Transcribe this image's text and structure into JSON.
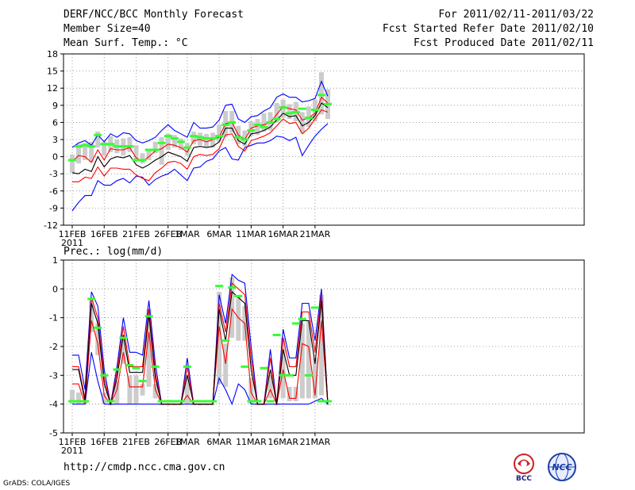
{
  "header": {
    "title": "DERF/NCC/BCC Monthly Forecast",
    "member_size": "Member Size=40",
    "variable": "Mean Surf. Temp.: °C",
    "period": "For 2011/02/11-2011/03/22",
    "started": "Fcst Started Refer Date 2011/02/10",
    "produced": "Fcst Produced Date 2011/02/11"
  },
  "panel2_label": "Prec.: log(mm/d)",
  "footer": {
    "url": "http://cmdp.ncc.cma.gov.cn",
    "credit": "GrADS: COLA/IGES",
    "logo1_text": "BCC",
    "logo2_text": "NCC"
  },
  "colors": {
    "box": "#cccccc",
    "obs": "#33ff33",
    "max": "#0000ff",
    "min": "#0000ff",
    "upper": "#ff0000",
    "lower": "#ff0000",
    "mean": "#000000",
    "grid": "#888888"
  },
  "chart_data": [
    {
      "type": "line",
      "title": "Mean Surf. Temp.: °C",
      "x_ticks": [
        "11FEB",
        "16FEB",
        "21FEB",
        "26FEB",
        "1MAR",
        "6MAR",
        "11MAR",
        "16MAR",
        "21MAR"
      ],
      "x_tick_days": [
        0,
        5,
        10,
        15,
        18,
        23,
        28,
        33,
        38
      ],
      "x_sub_label": "2011",
      "yticks": [
        "18",
        "15",
        "12",
        "9",
        "6",
        "3",
        "0",
        "-3",
        "-6",
        "-9",
        "-12"
      ],
      "ylim": [
        -12,
        18
      ],
      "grid": true,
      "series": [
        {
          "name": "max",
          "values": [
            -9.5,
            -8,
            -6.8,
            -6.8,
            -4.2,
            -5,
            -5,
            -4.2,
            -3.8,
            -4.6,
            -3.4,
            -3.6,
            -5,
            -4,
            -3.4,
            -3,
            -2.2,
            -3.2,
            -4.2,
            -2,
            -1.8,
            -0.8,
            -0.4,
            1,
            1.6,
            -0.4,
            -0.6,
            1.6,
            2,
            2.4,
            2.4,
            2.8,
            3.6,
            3.4,
            2.8,
            3.4,
            0.2,
            2,
            3.6,
            4.8,
            5.8
          ]
        },
        {
          "name": "min",
          "values": [
            1.6,
            2.4,
            2.8,
            2,
            3.8,
            2.6,
            4,
            3.4,
            4.2,
            4,
            2.8,
            2.4,
            2.8,
            3.4,
            4.6,
            5.6,
            4.6,
            4,
            3.4,
            6,
            5,
            5,
            5.2,
            6.4,
            9,
            9.2,
            6.6,
            6,
            7,
            7.2,
            8,
            8.6,
            10.4,
            11,
            10.4,
            10.4,
            9.6,
            9.8,
            10.2,
            13.2,
            10.6
          ]
        },
        {
          "name": "upper",
          "values": [
            -0.8,
            0.2,
            0,
            -1,
            1.2,
            -0.6,
            1.4,
            1.2,
            1.2,
            1.6,
            -0.2,
            -0.8,
            0,
            1,
            1.4,
            2.2,
            2,
            1.6,
            0.8,
            2.8,
            3,
            2.6,
            3,
            3.4,
            5.8,
            6,
            3.8,
            3,
            5,
            5.4,
            5.6,
            6,
            7.4,
            8.8,
            8.4,
            8.2,
            6.4,
            6.8,
            7.6,
            10.4,
            9.4
          ]
        },
        {
          "name": "lower",
          "values": [
            -4.4,
            -4.4,
            -3.6,
            -3.8,
            -1.8,
            -3.4,
            -2,
            -2,
            -2.2,
            -2.2,
            -3.2,
            -3.8,
            -4.2,
            -2.8,
            -2,
            -1,
            -0.8,
            -1.2,
            -2.2,
            0,
            0.4,
            0.2,
            0.4,
            1.4,
            3.8,
            4,
            1.8,
            1,
            2.8,
            3.2,
            3.6,
            4.2,
            5.4,
            6.6,
            5.8,
            6,
            4,
            5,
            6.6,
            8.2,
            7.8
          ]
        },
        {
          "name": "mean",
          "values": [
            -2.8,
            -3,
            -2.2,
            -2.6,
            0,
            -1.8,
            -0.4,
            0,
            -0.2,
            0.2,
            -1.4,
            -2,
            -1.4,
            -0.6,
            0,
            0.8,
            0.4,
            0,
            -0.8,
            1.6,
            1.8,
            1.6,
            1.8,
            2.6,
            5,
            5,
            2.8,
            2.2,
            4,
            4.2,
            4.6,
            5.2,
            6.4,
            7.6,
            7,
            7.2,
            5.4,
            6,
            7.2,
            9.4,
            8.6
          ]
        },
        {
          "name": "observed",
          "values": [
            -0.6,
            1.8,
            2,
            1.8,
            3.8,
            2.2,
            2.2,
            1.8,
            1.8,
            1.8,
            -0.6,
            -0.6,
            1.2,
            1.2,
            2.4,
            3.6,
            3.2,
            2.6,
            1.6,
            3.6,
            3.4,
            3.2,
            3.2,
            3.6,
            5.6,
            6,
            3.4,
            3,
            4.6,
            5.6,
            5.2,
            6,
            6.6,
            8.6,
            7.6,
            7.8,
            8.4,
            6.8,
            8.2,
            10.8,
            9.2
          ]
        }
      ],
      "boxes": {
        "high": [
          0.4,
          2.2,
          2.4,
          2.6,
          4.4,
          2.6,
          3.6,
          3,
          3.2,
          3.4,
          2,
          0.6,
          1.2,
          2.6,
          3.4,
          4,
          3.8,
          3.2,
          2.4,
          4.4,
          4.2,
          4,
          4.2,
          5.6,
          8,
          8,
          5.4,
          4.6,
          6.2,
          6.6,
          7.6,
          7.8,
          9.4,
          10,
          9.2,
          9.6,
          7.8,
          8.8,
          10,
          14.8,
          11.8
        ],
        "low": [
          -2.8,
          -1.2,
          -0.6,
          -1,
          1.6,
          0.2,
          0.8,
          0.6,
          0.2,
          0.8,
          -0.4,
          -1.2,
          -0.6,
          0.6,
          -1.4,
          1.2,
          1.6,
          1.2,
          0.2,
          2.2,
          2,
          1.6,
          1.6,
          2.6,
          3.4,
          4.2,
          2.2,
          1.8,
          3.6,
          3.8,
          4.4,
          4.6,
          6,
          6.8,
          6.6,
          6.2,
          4.2,
          5.2,
          6.2,
          7.4,
          6.6
        ]
      }
    },
    {
      "type": "line",
      "title": "Prec.: log(mm/d)",
      "x_ticks": [
        "11FEB",
        "16FEB",
        "21FEB",
        "26FEB",
        "1MAR",
        "6MAR",
        "11MAR",
        "16MAR",
        "21MAR"
      ],
      "x_tick_days": [
        0,
        5,
        10,
        15,
        18,
        23,
        28,
        33,
        38
      ],
      "x_sub_label": "2011",
      "yticks": [
        "1",
        "0",
        "-1",
        "-2",
        "-3",
        "-4",
        "-5"
      ],
      "ylim": [
        -5,
        1
      ],
      "grid": true,
      "series": [
        {
          "name": "max",
          "values": [
            -2.3,
            -2.3,
            -3.5,
            -0.1,
            -0.6,
            -2.8,
            -4,
            -2.7,
            -1,
            -2.2,
            -2.2,
            -2.3,
            -0.4,
            -2.6,
            -4,
            -4,
            -4,
            -4,
            -2.4,
            -4,
            -4,
            -4,
            -4,
            -0.2,
            -1.2,
            0.5,
            0.3,
            0.2,
            -2,
            -4,
            -4,
            -2.1,
            -4,
            -1.4,
            -2.4,
            -2.4,
            -0.5,
            -0.5,
            -1.8,
            0,
            -4
          ]
        },
        {
          "name": "min",
          "values": [
            -4,
            -4,
            -4,
            -2.2,
            -3.2,
            -4,
            -4,
            -4,
            -4,
            -4,
            -4,
            -4,
            -4,
            -4,
            -4,
            -4,
            -4,
            -4,
            -4,
            -4,
            -4,
            -4,
            -4,
            -3.1,
            -3.5,
            -4,
            -3.3,
            -3.5,
            -4,
            -4,
            -4,
            -4,
            -4,
            -4,
            -4,
            -4,
            -4,
            -4,
            -3.9,
            -3.8,
            -4
          ]
        },
        {
          "name": "upper",
          "values": [
            -2.7,
            -2.7,
            -3.8,
            -0.3,
            -1,
            -3.1,
            -4,
            -2.9,
            -1.3,
            -2.7,
            -2.7,
            -2.7,
            -0.7,
            -2.9,
            -4,
            -4,
            -4,
            -4,
            -2.7,
            -4,
            -4,
            -4,
            -4,
            -0.5,
            -1.5,
            0.2,
            0,
            -0.2,
            -2.4,
            -4,
            -4,
            -2.4,
            -4,
            -1.7,
            -2.7,
            -2.7,
            -0.8,
            -0.8,
            -2.2,
            -0.2,
            -4
          ]
        },
        {
          "name": "lower",
          "values": [
            -3.3,
            -3.3,
            -4,
            -1.1,
            -1.9,
            -3.7,
            -4,
            -3.5,
            -2.2,
            -3.4,
            -3.4,
            -3.4,
            -1.5,
            -3.5,
            -4,
            -4,
            -4,
            -4,
            -3.7,
            -4,
            -4,
            -4,
            -4,
            -1.3,
            -2.6,
            -0.7,
            -1,
            -1.2,
            -3.6,
            -4,
            -4,
            -3.5,
            -4,
            -2.8,
            -3.8,
            -3.8,
            -1.9,
            -2,
            -3.7,
            -1.1,
            -4
          ]
        },
        {
          "name": "mean",
          "values": [
            -2.8,
            -2.8,
            -3.9,
            -0.5,
            -1.2,
            -3.3,
            -4,
            -3.1,
            -1.6,
            -2.9,
            -2.9,
            -2.9,
            -0.9,
            -3.1,
            -4,
            -4,
            -4,
            -4,
            -3,
            -4,
            -4,
            -4,
            -4,
            -0.7,
            -1.8,
            -0.1,
            -0.3,
            -0.5,
            -2.8,
            -4,
            -4,
            -2.8,
            -4,
            -2.1,
            -3,
            -3,
            -1.1,
            -1.1,
            -2.6,
            -0.4,
            -4
          ]
        },
        {
          "name": "observed",
          "values": [
            -3.9,
            -3.9,
            -3.9,
            -0.35,
            -1.35,
            -3,
            -3.9,
            -2.8,
            -1.7,
            -2.65,
            -2.75,
            -3.2,
            -0.95,
            -2.7,
            -3.9,
            -3.9,
            -3.9,
            -3.9,
            -2.7,
            -3.9,
            -3.9,
            -3.9,
            -3.9,
            0.1,
            -1.8,
            0.05,
            -0.25,
            -2.7,
            -3.9,
            -3.9,
            -2.75,
            -3.9,
            -1.6,
            -3,
            -3,
            -1.2,
            -1.05,
            -3,
            -0.65,
            -3.9,
            -3.9
          ]
        }
      ],
      "boxes": {
        "high": [
          -3.5,
          -3.6,
          -3.9,
          -0.4,
          -1.2,
          -3.6,
          -4,
          -3.2,
          -1.6,
          -3,
          -3,
          -3.3,
          -0.7,
          -3.3,
          -4,
          -4,
          -4,
          -4,
          -3,
          -4,
          -4,
          -4,
          -4,
          -0.1,
          -1.9,
          0.4,
          -0.3,
          -0.6,
          -3.1,
          -4,
          -4,
          -3,
          -4,
          -1.7,
          -3.4,
          -3.4,
          -1.2,
          -1.1,
          -2.4,
          -0.2,
          -4
        ],
        "low": [
          -4,
          -4,
          -4,
          -1.5,
          -2.3,
          -4,
          -4,
          -4,
          -2.6,
          -4,
          -4,
          -3.7,
          -3.4,
          -3.8,
          -4,
          -4,
          -4,
          -4,
          -4,
          -4,
          -4,
          -4,
          -4,
          -3.3,
          -3.4,
          -1.7,
          -1.8,
          -1.8,
          -4,
          -4,
          -4,
          -3.8,
          -4,
          -3.8,
          -3.9,
          -3.9,
          -3.8,
          -3.8,
          -3.8,
          -3.7,
          -4
        ]
      }
    }
  ]
}
